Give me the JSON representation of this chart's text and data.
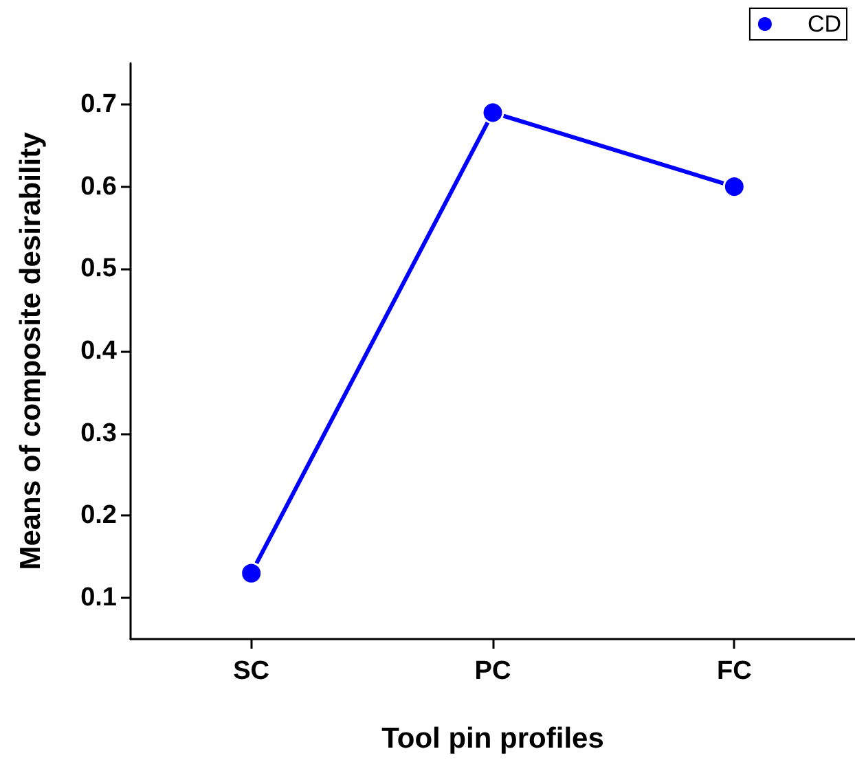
{
  "chart_data": {
    "type": "line",
    "xlabel": "Tool pin profiles",
    "ylabel": "Means of composite desirability",
    "categories": [
      "SC",
      "PC",
      "FC"
    ],
    "series": [
      {
        "name": "CD",
        "color": "#0000ff",
        "values": [
          0.13,
          0.69,
          0.6
        ]
      }
    ],
    "ylim": [
      0.05,
      0.75
    ],
    "yticks": [
      0.1,
      0.2,
      0.3,
      0.4,
      0.5,
      0.6,
      0.7
    ],
    "grid": false,
    "legend": "top right",
    "marker": "circle",
    "line_style": "solid"
  }
}
